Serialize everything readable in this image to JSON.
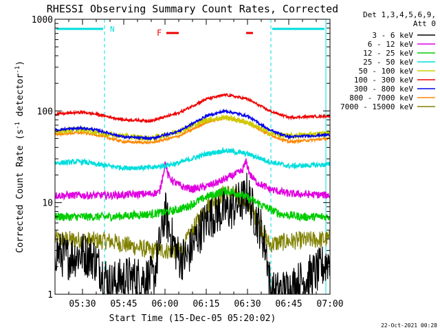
{
  "chart_data": {
    "type": "line",
    "title": "RHESSI Observing Summary Count Rates, Corrected",
    "xlabel": "Start Time (15-Dec-05 05:20:02)",
    "ylabel_main": "Corrected Count Rate (s",
    "ylabel_sup1": "-1",
    "ylabel_mid": " detector",
    "ylabel_sup2": "-1",
    "ylabel_end": ")",
    "x_unit": "minutes since 05:20",
    "xlim": [
      0,
      100
    ],
    "ylim": [
      1,
      1000
    ],
    "yscale": "log",
    "x_ticks": [
      {
        "label": "05:30",
        "x": 10
      },
      {
        "label": "05:45",
        "x": 25
      },
      {
        "label": "06:00",
        "x": 40
      },
      {
        "label": "06:15",
        "x": 55
      },
      {
        "label": "06:30",
        "x": 70
      },
      {
        "label": "06:45",
        "x": 85
      },
      {
        "label": "07:00",
        "x": 100
      }
    ],
    "y_ticks": [
      {
        "label": "1000",
        "y": 1000
      },
      {
        "label": "100",
        "y": 100
      },
      {
        "label": "10",
        "y": 10
      },
      {
        "label": "1",
        "y": 1
      }
    ],
    "legend_header": [
      "Det 1,3,4,5,6,9,",
      "Att 0"
    ],
    "series": [
      {
        "name": "3 - 6 keV",
        "color": "#000000",
        "noise": 0.55,
        "points": [
          [
            0,
            3
          ],
          [
            4,
            2.5
          ],
          [
            10,
            2.8
          ],
          [
            14,
            2.5
          ],
          [
            16,
            2
          ],
          [
            20,
            1.3
          ],
          [
            26,
            1.5
          ],
          [
            36,
            1.5
          ],
          [
            38,
            3.5
          ],
          [
            40,
            8
          ],
          [
            41,
            6
          ],
          [
            42,
            4.5
          ],
          [
            45,
            2.5
          ],
          [
            48,
            2.5
          ],
          [
            52,
            4.5
          ],
          [
            56,
            7
          ],
          [
            60,
            8
          ],
          [
            64,
            8.5
          ],
          [
            66,
            9.5
          ],
          [
            69,
            11
          ],
          [
            70,
            13
          ],
          [
            72,
            8
          ],
          [
            75,
            5
          ],
          [
            77,
            2.8
          ],
          [
            78.5,
            1
          ],
          [
            84,
            1.1
          ],
          [
            90,
            1.4
          ],
          [
            96,
            1.8
          ],
          [
            100,
            2.5
          ]
        ]
      },
      {
        "name": "6 - 12 keV",
        "color": "#e000e0",
        "noise": 0.09,
        "points": [
          [
            0,
            12
          ],
          [
            20,
            12
          ],
          [
            35,
            12.5
          ],
          [
            38,
            13
          ],
          [
            40.2,
            28
          ],
          [
            41,
            20
          ],
          [
            43,
            17
          ],
          [
            46,
            15
          ],
          [
            50,
            14
          ],
          [
            55,
            15
          ],
          [
            60,
            17
          ],
          [
            65,
            20
          ],
          [
            68,
            22
          ],
          [
            69.5,
            28
          ],
          [
            71,
            20
          ],
          [
            73,
            17
          ],
          [
            78,
            14
          ],
          [
            85,
            12.5
          ],
          [
            100,
            12
          ]
        ]
      },
      {
        "name": "12 - 25 keV",
        "color": "#00cc00",
        "noise": 0.1,
        "points": [
          [
            0,
            7
          ],
          [
            20,
            7
          ],
          [
            35,
            7.5
          ],
          [
            42,
            8
          ],
          [
            48,
            9
          ],
          [
            55,
            11.5
          ],
          [
            62,
            13.5
          ],
          [
            67,
            12.5
          ],
          [
            72,
            10.5
          ],
          [
            78,
            8.5
          ],
          [
            82,
            7.5
          ],
          [
            90,
            7
          ],
          [
            100,
            7
          ]
        ]
      },
      {
        "name": "25 - 50 keV",
        "color": "#00dddd",
        "noise": 0.06,
        "points": [
          [
            0,
            27
          ],
          [
            10,
            28
          ],
          [
            15,
            26
          ],
          [
            25,
            24
          ],
          [
            35,
            24
          ],
          [
            45,
            27
          ],
          [
            55,
            34
          ],
          [
            62,
            37
          ],
          [
            70,
            34
          ],
          [
            78,
            28
          ],
          [
            85,
            25
          ],
          [
            100,
            26
          ]
        ]
      },
      {
        "name": "50 - 100 keV",
        "color": "#cccc00",
        "noise": 0.07,
        "points": [
          [
            0,
            60
          ],
          [
            10,
            63
          ],
          [
            20,
            55
          ],
          [
            35,
            50
          ],
          [
            45,
            60
          ],
          [
            55,
            80
          ],
          [
            62,
            85
          ],
          [
            70,
            75
          ],
          [
            78,
            57
          ],
          [
            85,
            53
          ],
          [
            100,
            57
          ]
        ]
      },
      {
        "name": "100 - 300 keV",
        "color": "#ee0000",
        "noise": 0.03,
        "points": [
          [
            0,
            92
          ],
          [
            10,
            97
          ],
          [
            15,
            92
          ],
          [
            25,
            80
          ],
          [
            35,
            78
          ],
          [
            45,
            95
          ],
          [
            55,
            135
          ],
          [
            62,
            150
          ],
          [
            70,
            135
          ],
          [
            78,
            100
          ],
          [
            85,
            85
          ],
          [
            100,
            88
          ]
        ]
      },
      {
        "name": "300 - 800 keV",
        "color": "#0000ee",
        "noise": 0.03,
        "points": [
          [
            0,
            62
          ],
          [
            10,
            65
          ],
          [
            15,
            62
          ],
          [
            25,
            52
          ],
          [
            35,
            50
          ],
          [
            45,
            60
          ],
          [
            55,
            88
          ],
          [
            62,
            100
          ],
          [
            70,
            88
          ],
          [
            78,
            62
          ],
          [
            85,
            52
          ],
          [
            100,
            55
          ]
        ]
      },
      {
        "name": "800 - 7000 keV",
        "color": "#ff8800",
        "noise": 0.03,
        "points": [
          [
            0,
            56
          ],
          [
            10,
            58
          ],
          [
            15,
            55
          ],
          [
            25,
            46
          ],
          [
            35,
            45
          ],
          [
            45,
            53
          ],
          [
            55,
            75
          ],
          [
            62,
            85
          ],
          [
            70,
            75
          ],
          [
            78,
            55
          ],
          [
            85,
            46
          ],
          [
            100,
            50
          ]
        ]
      },
      {
        "name": "7000 - 15000 keV",
        "color": "#808000",
        "noise": 0.22,
        "points": [
          [
            0,
            4
          ],
          [
            20,
            3.8
          ],
          [
            35,
            3
          ],
          [
            40,
            3
          ],
          [
            46,
            3
          ],
          [
            50,
            5
          ],
          [
            55,
            9
          ],
          [
            62,
            13
          ],
          [
            66,
            12
          ],
          [
            70,
            10
          ],
          [
            74,
            6
          ],
          [
            78,
            3.5
          ],
          [
            85,
            3.8
          ],
          [
            100,
            4
          ]
        ]
      }
    ],
    "annotations": {
      "N_label": "N",
      "F_label": "F",
      "night_color": "#00dddd",
      "flare_color": "#ee0000",
      "night_intervals": [
        [
          0,
          18
        ],
        [
          78.5,
          98.5
        ]
      ],
      "flare_intervals": [
        [
          40.5,
          45
        ],
        [
          69.5,
          72
        ]
      ]
    }
  },
  "footer": {
    "timestamp": "22-Oct-2021 00:28"
  }
}
